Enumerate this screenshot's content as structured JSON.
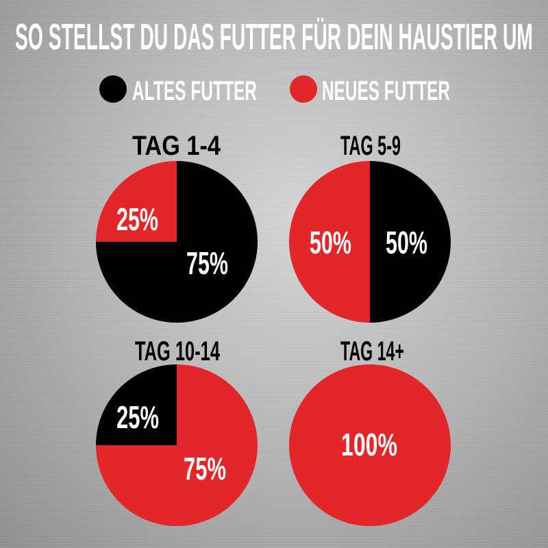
{
  "title": "SO STELLST DU DAS FUTTER FÜR DEIN HAUSTIER UM",
  "legend": [
    {
      "label": "ALTES FUTTER",
      "color": "#000000"
    },
    {
      "label": "NEUES FUTTER",
      "color": "#e3262a"
    }
  ],
  "chart_data": [
    {
      "type": "pie",
      "title": "TAG 1-4",
      "slices": [
        {
          "series": "ALTES FUTTER",
          "value": 75,
          "label": "75%",
          "color": "#000000"
        },
        {
          "series": "NEUES FUTTER",
          "value": 25,
          "label": "25%",
          "color": "#e3262a"
        }
      ]
    },
    {
      "type": "pie",
      "title": "TAG 5-9",
      "slices": [
        {
          "series": "ALTES FUTTER",
          "value": 50,
          "label": "50%",
          "color": "#000000"
        },
        {
          "series": "NEUES FUTTER",
          "value": 50,
          "label": "50%",
          "color": "#e3262a"
        }
      ]
    },
    {
      "type": "pie",
      "title": "TAG 10-14",
      "slices": [
        {
          "series": "NEUES FUTTER",
          "value": 75,
          "label": "75%",
          "color": "#e3262a"
        },
        {
          "series": "ALTES FUTTER",
          "value": 25,
          "label": "25%",
          "color": "#000000"
        }
      ]
    },
    {
      "type": "pie",
      "title": "TAG 14+",
      "slices": [
        {
          "series": "NEUES FUTTER",
          "value": 100,
          "label": "100%",
          "color": "#e3262a"
        }
      ]
    }
  ]
}
